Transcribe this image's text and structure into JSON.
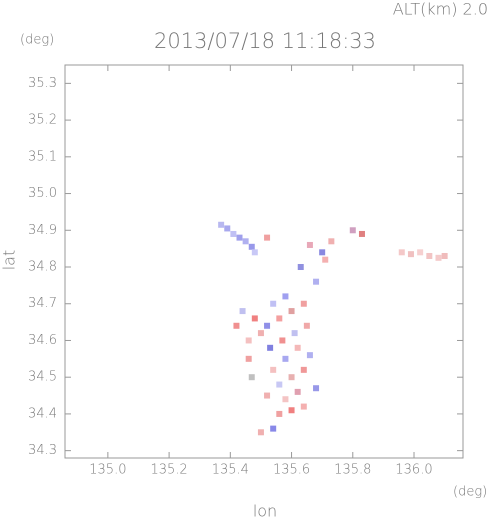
{
  "chart_data": {
    "type": "scatter",
    "title": "2013/07/18 11:18:33",
    "annotation": "ALT(km) 2.0",
    "y_unit": "(deg)",
    "x_unit": "(deg)",
    "xlabel": "lon",
    "ylabel": "lat",
    "xlim": [
      134.86,
      136.16
    ],
    "ylim": [
      34.28,
      35.35
    ],
    "xticks": [
      {
        "value": 135.0,
        "label": "135.0"
      },
      135.2,
      135.4,
      135.6,
      135.8,
      {
        "value": 136.0,
        "label": "136.0"
      }
    ],
    "yticks": [
      34.3,
      34.4,
      34.5,
      34.6,
      34.7,
      34.8,
      34.9,
      {
        "value": 35.0,
        "label": "35.0"
      },
      35.1,
      35.2,
      35.3
    ],
    "x": [
      135.37,
      135.39,
      135.41,
      135.43,
      135.45,
      135.47,
      135.48,
      135.96,
      135.99,
      136.02,
      136.05,
      136.08,
      136.1,
      135.52,
      135.66,
      135.7,
      135.73,
      135.8,
      135.83,
      135.63,
      135.68,
      135.71,
      135.44,
      135.48,
      135.52,
      135.56,
      135.6,
      135.64,
      135.58,
      135.54,
      135.5,
      135.46,
      135.53,
      135.57,
      135.61,
      135.65,
      135.62,
      135.58,
      135.54,
      135.6,
      135.56,
      135.64,
      135.66,
      135.52,
      135.58,
      135.62,
      135.68,
      135.6,
      135.56,
      135.64,
      135.54,
      135.5,
      135.46,
      135.42,
      135.47
    ],
    "y": [
      34.915,
      34.905,
      34.89,
      34.88,
      34.87,
      34.855,
      34.84,
      34.84,
      34.835,
      34.84,
      34.83,
      34.825,
      34.83,
      34.88,
      34.86,
      34.84,
      34.87,
      34.9,
      34.89,
      34.8,
      34.76,
      34.82,
      34.68,
      34.66,
      34.64,
      34.66,
      34.68,
      34.7,
      34.72,
      34.7,
      34.62,
      34.6,
      34.58,
      34.6,
      34.62,
      34.64,
      34.58,
      34.55,
      34.52,
      34.5,
      34.48,
      34.52,
      34.56,
      34.45,
      34.44,
      34.46,
      34.47,
      34.41,
      34.4,
      34.42,
      34.36,
      34.35,
      34.55,
      34.64,
      34.5
    ],
    "colors": [
      "#b8b8f0",
      "#a8a8ee",
      "#c0c0f4",
      "#a0a0ec",
      "#b0b0f0",
      "#9898ea",
      "#c8c8f6",
      "#f4c8c8",
      "#f0c0c0",
      "#f6d0d0",
      "#f2c4c4",
      "#f4caca",
      "#f0bcbc",
      "#f0a0a0",
      "#e8a8b8",
      "#8888e0",
      "#f0b0b0",
      "#d0a0c0",
      "#e08080",
      "#9090e0",
      "#b0b0f0",
      "#f4b0b0",
      "#c0c0f0",
      "#f08080",
      "#9090e8",
      "#f4a0a0",
      "#e0a0a0",
      "#f0a0a0",
      "#a0a0f0",
      "#c0c0f4",
      "#f0b0b0",
      "#f4c0c0",
      "#8080e0",
      "#f09090",
      "#c0c0f0",
      "#f0a8a8",
      "#f4b8b8",
      "#a8a8f0",
      "#f4c0c0",
      "#e8b0b0",
      "#c8c8f4",
      "#f09898",
      "#b0b0f0",
      "#f0b0b0",
      "#f4c4c4",
      "#e0a0b0",
      "#9898e8",
      "#f08080",
      "#f0a0a0",
      "#f4b0b0",
      "#8888e8",
      "#f0b0b0",
      "#f0a0a0",
      "#f09090",
      "#c0c0c0"
    ]
  }
}
